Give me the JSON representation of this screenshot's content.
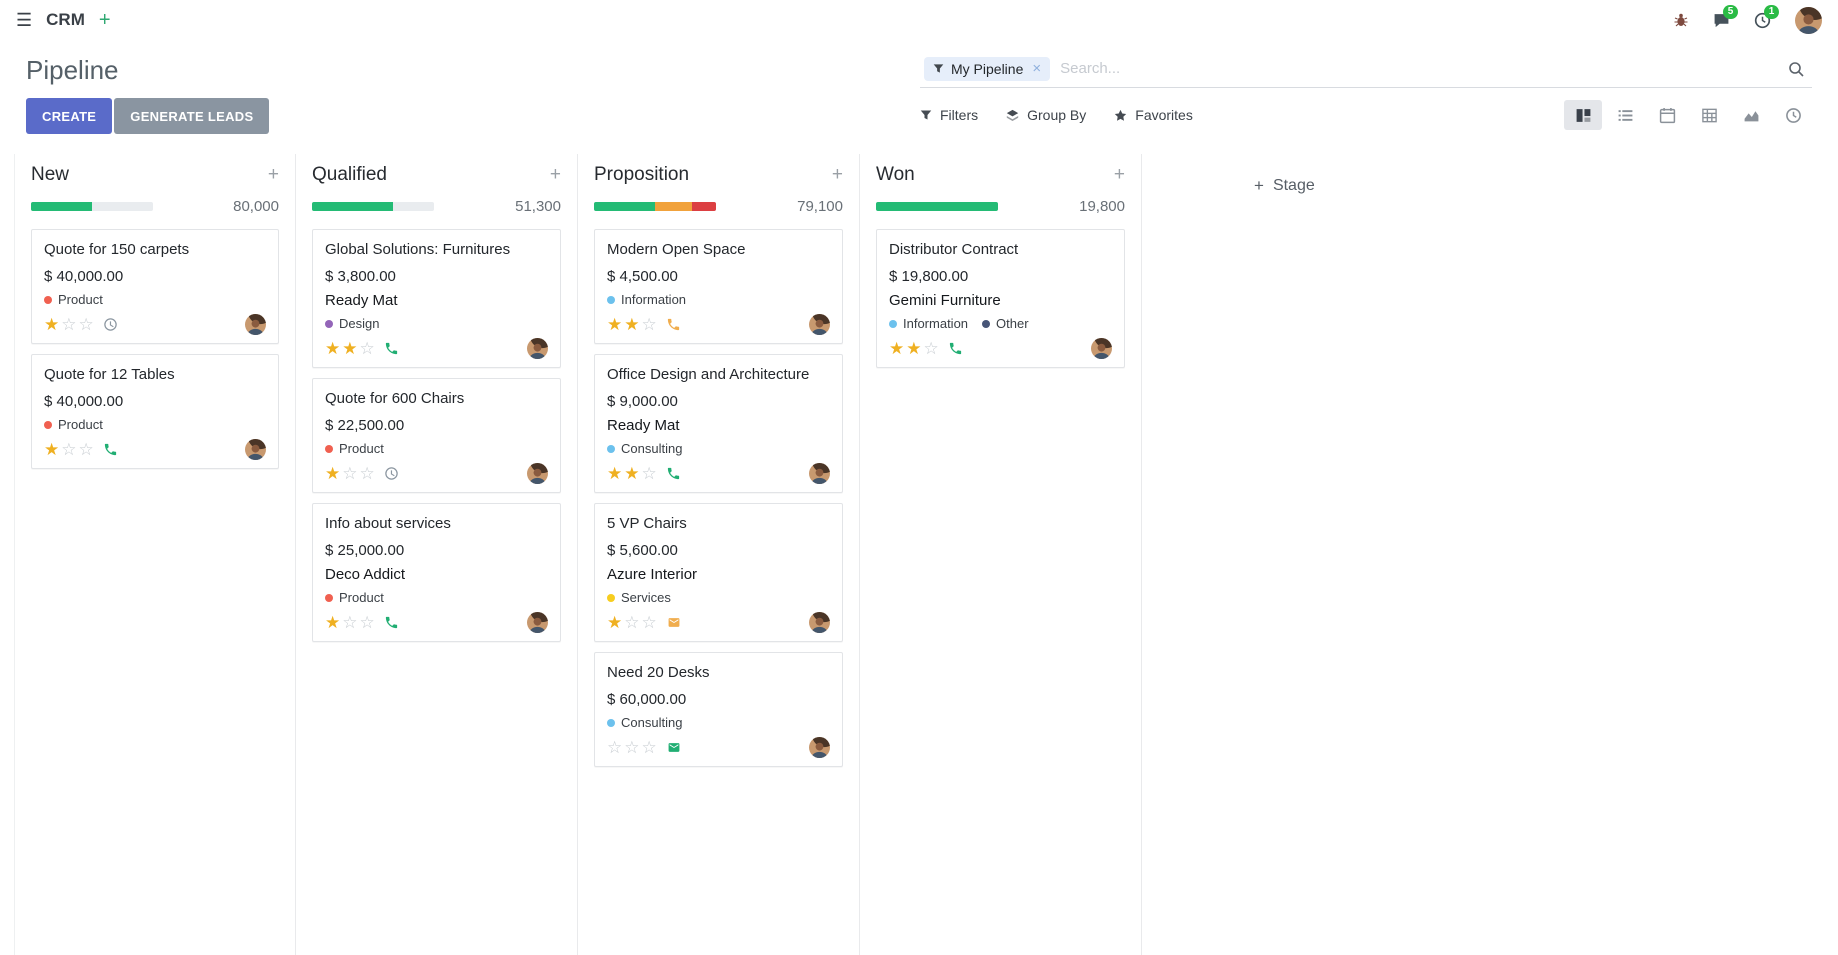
{
  "colors": {
    "primary": "#5A6BC9",
    "secondary": "#8A95A1",
    "star": "#EFB021"
  },
  "icons": {
    "apps_menu": "☰",
    "plus": "+",
    "facet_remove": "×",
    "star_filled": "★",
    "star_empty": "☆"
  },
  "navbar": {
    "app_name": "CRM",
    "messages_badge": "5",
    "activities_badge": "1"
  },
  "control_panel": {
    "title": "Pipeline",
    "create_label": "CREATE",
    "generate_leads_label": "GENERATE LEADS",
    "search": {
      "facet_label": "My Pipeline",
      "placeholder": "Search..."
    },
    "filters_label": "Filters",
    "group_by_label": "Group By",
    "favorites_label": "Favorites",
    "view_switcher": [
      "kanban",
      "list",
      "calendar",
      "pivot",
      "graph",
      "activity"
    ]
  },
  "board": {
    "add_stage_label": "Stage",
    "columns": [
      {
        "title": "New",
        "total": "80,000",
        "progress": [
          {
            "color": "#24BB75",
            "pct": 50
          }
        ],
        "cards": [
          {
            "title": "Quote for 150 carpets",
            "amount": "$ 40,000.00",
            "tags": [
              {
                "label": "Product",
                "color": "#F06050"
              }
            ],
            "stars": 1,
            "activity": {
              "type": "clock",
              "color": "#8B96A0"
            }
          },
          {
            "title": "Quote for 12 Tables",
            "amount": "$ 40,000.00",
            "tags": [
              {
                "label": "Product",
                "color": "#F06050"
              }
            ],
            "stars": 1,
            "activity": {
              "type": "phone",
              "color": "#21AE73"
            }
          }
        ]
      },
      {
        "title": "Qualified",
        "total": "51,300",
        "progress": [
          {
            "color": "#24BB75",
            "pct": 66
          }
        ],
        "cards": [
          {
            "title": "Global Solutions: Furnitures",
            "amount": "$ 3,800.00",
            "partner": "Ready Mat",
            "tags": [
              {
                "label": "Design",
                "color": "#9365B8"
              }
            ],
            "stars": 2,
            "activity": {
              "type": "phone",
              "color": "#21AE73"
            }
          },
          {
            "title": "Quote for 600 Chairs",
            "amount": "$ 22,500.00",
            "tags": [
              {
                "label": "Product",
                "color": "#F06050"
              }
            ],
            "stars": 1,
            "activity": {
              "type": "clock",
              "color": "#8B96A0"
            }
          },
          {
            "title": "Info about services",
            "amount": "$ 25,000.00",
            "partner": "Deco Addict",
            "tags": [
              {
                "label": "Product",
                "color": "#F06050"
              }
            ],
            "stars": 1,
            "activity": {
              "type": "phone",
              "color": "#21AE73"
            }
          }
        ]
      },
      {
        "title": "Proposition",
        "total": "79,100",
        "progress": [
          {
            "color": "#24BB75",
            "pct": 50
          },
          {
            "color": "#F1A23C",
            "pct": 30
          },
          {
            "color": "#DC3F42",
            "pct": 20
          }
        ],
        "cards": [
          {
            "title": "Modern Open Space",
            "amount": "$ 4,500.00",
            "tags": [
              {
                "label": "Information",
                "color": "#6CC1ED"
              }
            ],
            "stars": 2,
            "activity": {
              "type": "phone",
              "color": "#F0AD4E"
            }
          },
          {
            "title": "Office Design and Architecture",
            "amount": "$ 9,000.00",
            "partner": "Ready Mat",
            "tags": [
              {
                "label": "Consulting",
                "color": "#6CC1ED"
              }
            ],
            "stars": 2,
            "activity": {
              "type": "phone",
              "color": "#21AE73"
            }
          },
          {
            "title": "5 VP Chairs",
            "amount": "$ 5,600.00",
            "partner": "Azure Interior",
            "tags": [
              {
                "label": "Services",
                "color": "#F7CD1F"
              }
            ],
            "stars": 1,
            "activity": {
              "type": "envelope",
              "color": "#F0AD4E"
            }
          },
          {
            "title": "Need 20 Desks",
            "amount": "$ 60,000.00",
            "tags": [
              {
                "label": "Consulting",
                "color": "#6CC1ED"
              }
            ],
            "stars": 0,
            "activity": {
              "type": "envelope",
              "color": "#21AE73"
            }
          }
        ]
      },
      {
        "title": "Won",
        "total": "19,800",
        "progress": [
          {
            "color": "#24BB75",
            "pct": 100
          }
        ],
        "cards": [
          {
            "title": "Distributor Contract",
            "amount": "$ 19,800.00",
            "partner": "Gemini Furniture",
            "tags": [
              {
                "label": "Information",
                "color": "#6CC1ED"
              },
              {
                "label": "Other",
                "color": "#475577"
              }
            ],
            "stars": 2,
            "activity": {
              "type": "phone",
              "color": "#21AE73"
            }
          }
        ]
      }
    ]
  }
}
